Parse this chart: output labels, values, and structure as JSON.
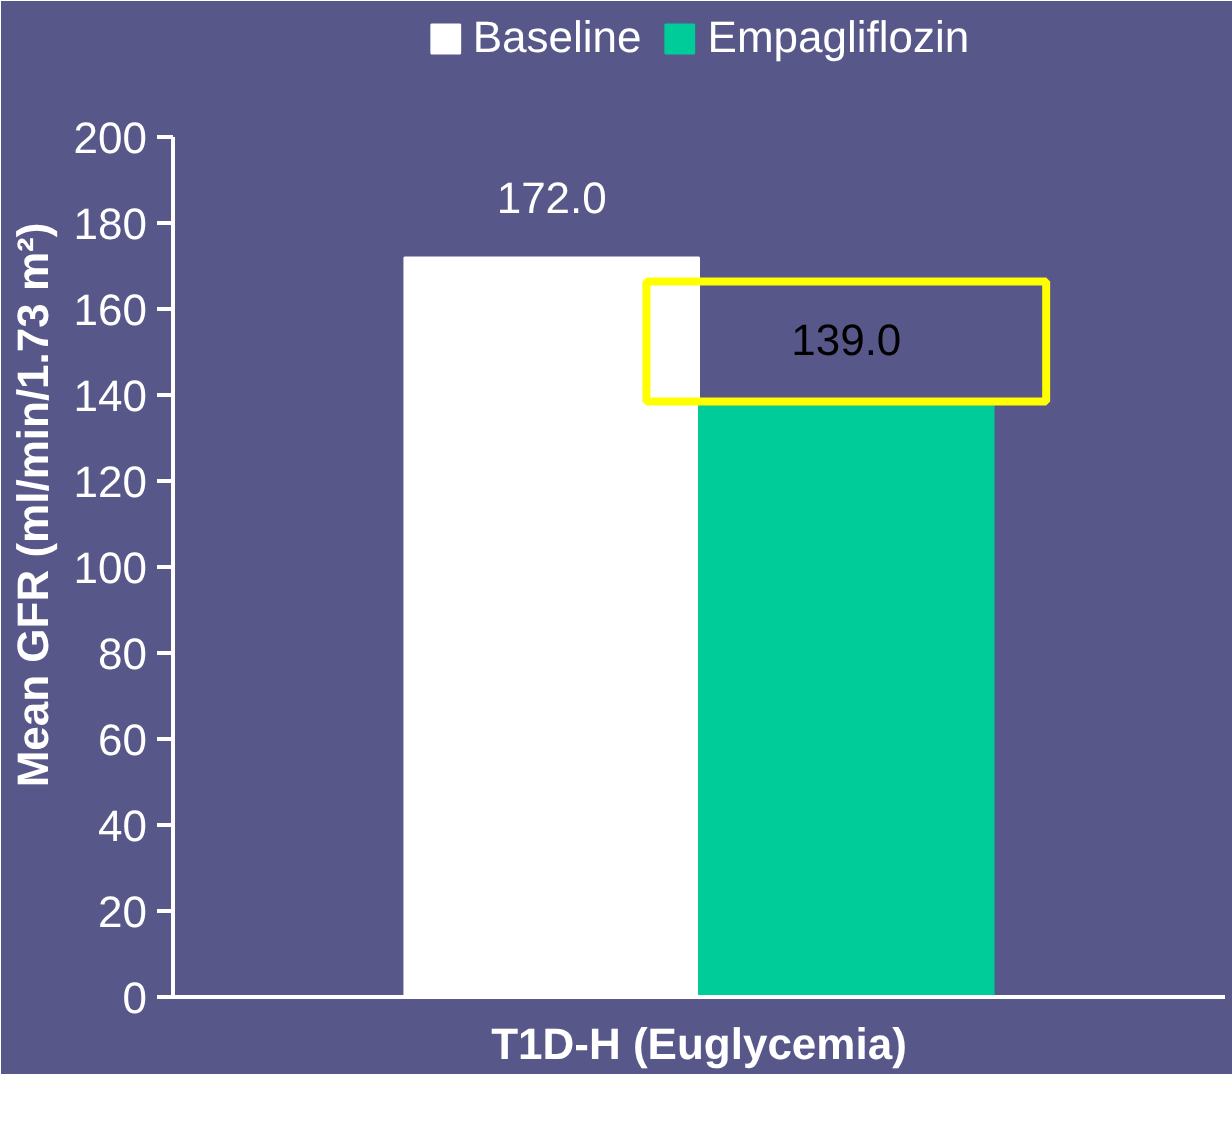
{
  "chart_data": {
    "type": "bar",
    "ylabel": "Mean GFR (ml/min/1.73 m²)",
    "categories": [
      "T1D-H (Euglycemia)"
    ],
    "series": [
      {
        "name": "Baseline",
        "color": "#ffffff",
        "values": [
          172.0
        ],
        "value_labels": [
          "172.0"
        ]
      },
      {
        "name": "Empagliflozin",
        "color": "#00cc99",
        "values": [
          139.0
        ],
        "value_labels": [
          "139.0"
        ]
      }
    ],
    "ylim": [
      0,
      200
    ],
    "yticks": [
      0,
      20,
      40,
      60,
      80,
      100,
      120,
      140,
      160,
      180,
      200
    ],
    "grid": false,
    "legend": "top"
  }
}
